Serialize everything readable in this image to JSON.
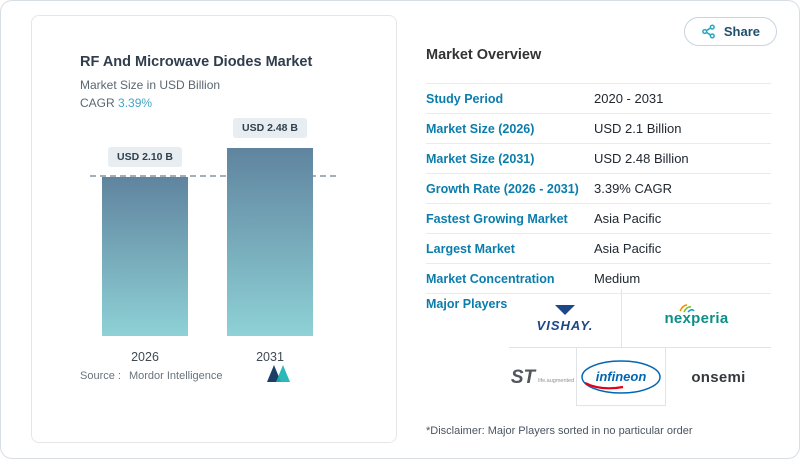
{
  "share": {
    "label": "Share"
  },
  "chart_card": {
    "title": "RF And Microwave Diodes Market",
    "subtitle": "Market Size in USD Billion",
    "cagr_label": "CAGR",
    "cagr_value": "3.39%",
    "source_label": "Source :",
    "source_value": "Mordor Intelligence"
  },
  "chart_data": {
    "type": "bar",
    "title": "RF And Microwave Diodes Market",
    "ylabel": "Market Size in USD Billion",
    "categories": [
      "2026",
      "2031"
    ],
    "values": [
      2.1,
      2.48
    ],
    "bar_labels": [
      "USD 2.10 B",
      "USD 2.48 B"
    ],
    "ylim": [
      0,
      2.75
    ],
    "reference_line": 2.1,
    "grid": false,
    "legend": "none"
  },
  "overview": {
    "heading": "Market Overview",
    "rows": [
      {
        "label": "Study Period",
        "value": "2020 - 2031"
      },
      {
        "label": "Market Size (2026)",
        "value": "USD 2.1 Billion"
      },
      {
        "label": "Market Size (2031)",
        "value": "USD 2.48 Billion"
      },
      {
        "label": "Growth Rate (2026 - 2031)",
        "value": "3.39% CAGR"
      },
      {
        "label": "Fastest Growing Market",
        "value": "Asia Pacific"
      },
      {
        "label": "Largest Market",
        "value": "Asia Pacific"
      },
      {
        "label": "Market Concentration",
        "value": "Medium"
      }
    ],
    "major_players_label": "Major Players",
    "players": [
      "VISHAY.",
      "nexperia",
      "ST",
      "infineon",
      "onsemi"
    ],
    "st_tagline": "life.augmented",
    "disclaimer": "*Disclaimer: Major Players sorted in no particular order"
  },
  "colors": {
    "accent_label": "#0b7dad",
    "cagr_accent": "#43a6c6",
    "bar_gradient_top": "#60849f",
    "bar_gradient_bottom": "#8ed1d6",
    "share_icon": "#2aa7bd"
  }
}
